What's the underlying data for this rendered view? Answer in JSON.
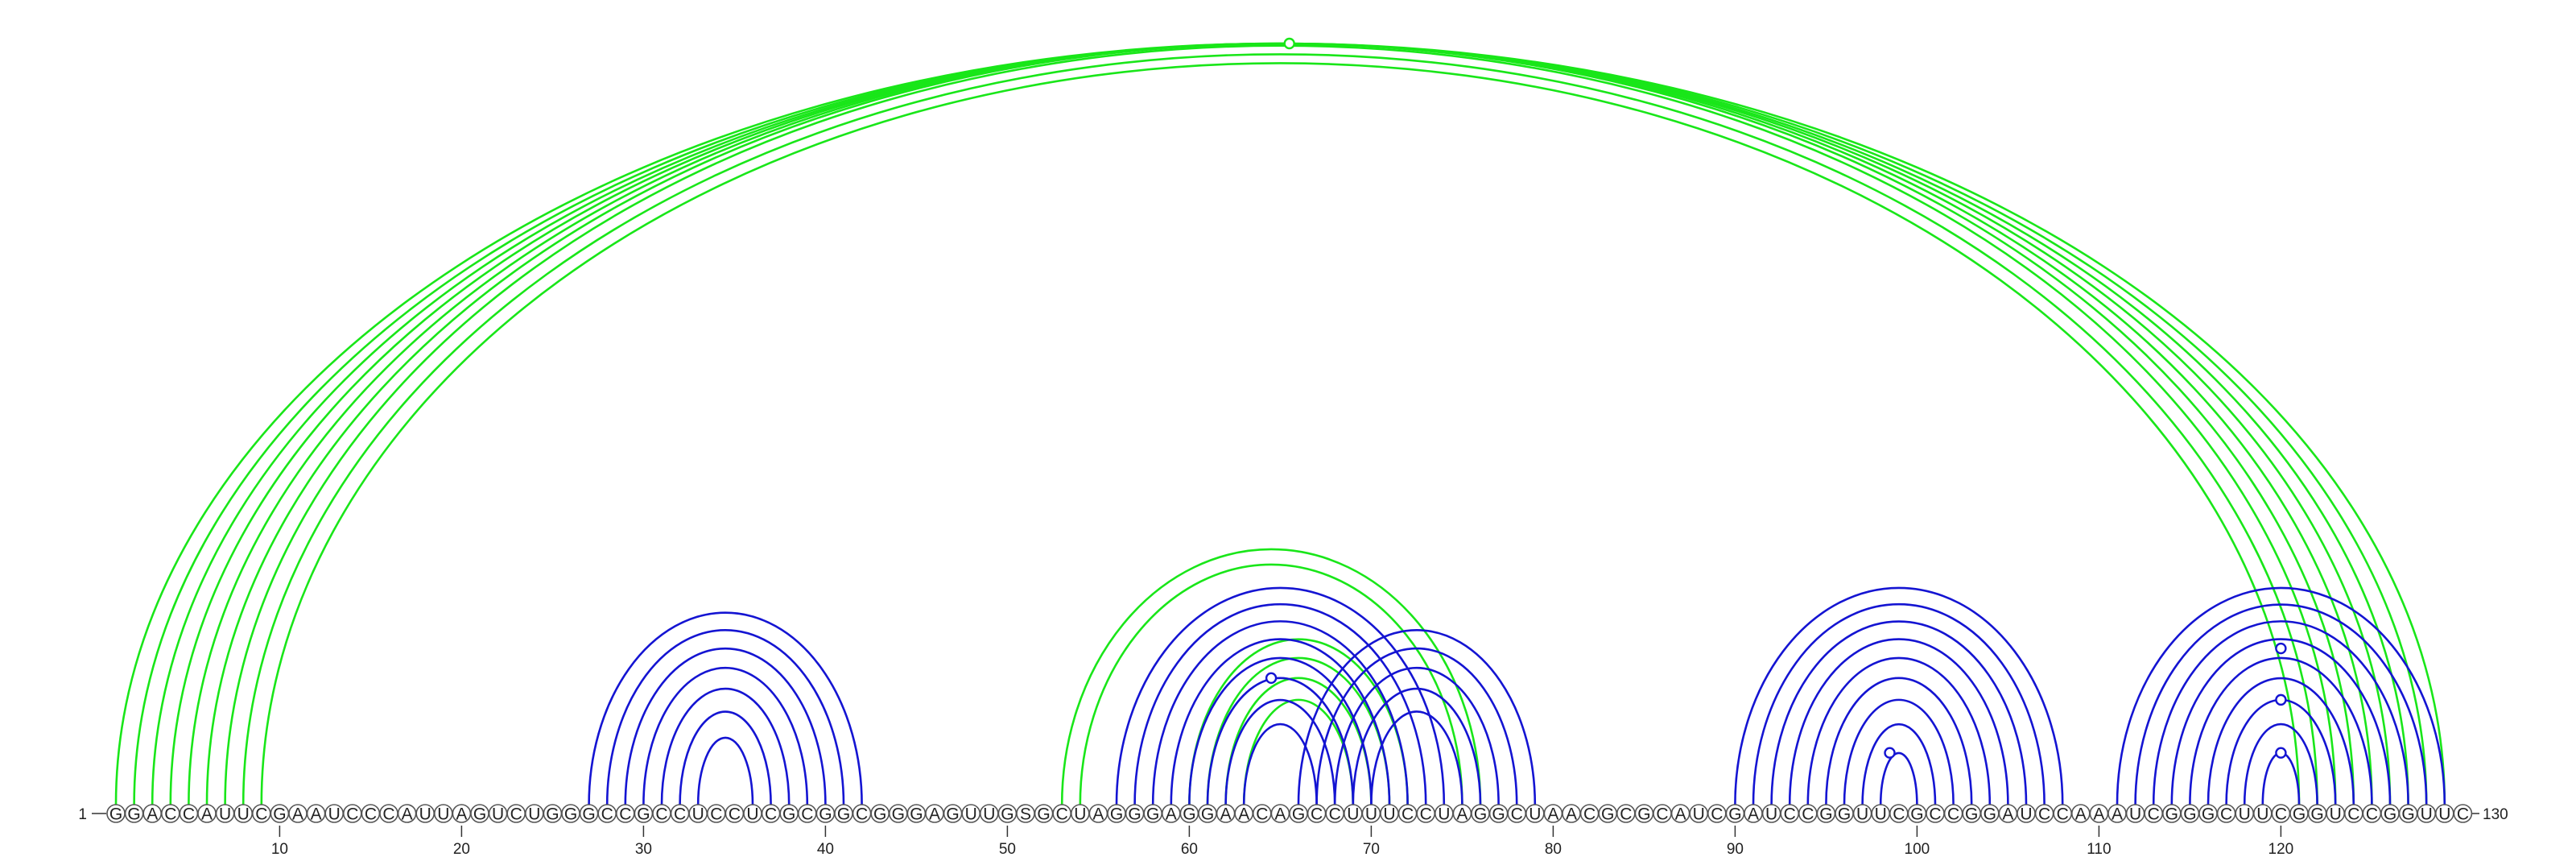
{
  "sequence": "GGACCAUUCGAAUCCCAUUAGUCUGGGCCGCCUCCUCGCGGCGGGAGUUGSGCUAGGGAGGAACAGCCUUUCCUAGGCUAACGCGCAUCGAUCCGGUUCGCCGGAUCCAAAUCGGGCUUCGGUCCGGUUC",
  "start_label": "1",
  "end_label": "130",
  "ticks": [
    "10",
    "20",
    "30",
    "40",
    "50",
    "60",
    "70",
    "80",
    "90",
    "100",
    "110",
    "120"
  ],
  "colors": {
    "green": "#19e619",
    "blue": "#1414d2"
  },
  "arc_groups": [
    {
      "name": "green-long-range",
      "color": "green",
      "pairs": [
        [
          1,
          129
        ],
        [
          2,
          128
        ],
        [
          3,
          127
        ],
        [
          4,
          126
        ],
        [
          5,
          125
        ],
        [
          6,
          124
        ],
        [
          7,
          123
        ],
        [
          8,
          122
        ],
        [
          9,
          121
        ]
      ]
    },
    {
      "name": "blue-hairpin-1",
      "color": "blue",
      "pairs": [
        [
          27,
          42
        ],
        [
          28,
          41
        ],
        [
          29,
          40
        ],
        [
          30,
          39
        ],
        [
          31,
          38
        ],
        [
          32,
          37
        ],
        [
          33,
          36
        ]
      ]
    },
    {
      "name": "green-pseudoknot",
      "color": "green",
      "pairs": [
        [
          53,
          76
        ],
        [
          54,
          75
        ],
        [
          60,
          72
        ],
        [
          61,
          71
        ],
        [
          62,
          70
        ],
        [
          63,
          69
        ]
      ]
    },
    {
      "name": "blue-stem-2",
      "color": "blue",
      "pairs": [
        [
          56,
          74
        ],
        [
          57,
          73
        ],
        [
          58,
          72
        ],
        [
          59,
          71
        ],
        [
          60,
          70
        ],
        [
          61,
          69
        ],
        [
          62,
          68
        ],
        [
          63,
          67
        ]
      ]
    },
    {
      "name": "blue-stem-3",
      "color": "blue",
      "pairs": [
        [
          66,
          79
        ],
        [
          67,
          78
        ],
        [
          68,
          77
        ],
        [
          69,
          76
        ],
        [
          70,
          75
        ]
      ]
    },
    {
      "name": "blue-hairpin-4",
      "color": "blue",
      "pairs": [
        [
          90,
          108
        ],
        [
          91,
          107
        ],
        [
          92,
          106
        ],
        [
          93,
          105
        ],
        [
          94,
          104
        ],
        [
          95,
          103
        ],
        [
          96,
          102
        ],
        [
          97,
          101
        ],
        [
          98,
          100
        ]
      ]
    },
    {
      "name": "blue-hairpin-5",
      "color": "blue",
      "pairs": [
        [
          111,
          129
        ],
        [
          112,
          128
        ],
        [
          113,
          127
        ],
        [
          114,
          126
        ],
        [
          115,
          125
        ],
        [
          116,
          124
        ],
        [
          117,
          123
        ],
        [
          118,
          122
        ],
        [
          119,
          121
        ]
      ]
    }
  ],
  "markers": [
    {
      "position": 65.5,
      "span": 120,
      "color": "green"
    },
    {
      "position": 64.5,
      "span": 8,
      "color": "blue"
    },
    {
      "position": 98.5,
      "span": 2,
      "color": "blue"
    },
    {
      "position": 120,
      "span": 2,
      "color": "blue"
    },
    {
      "position": 120,
      "span": 6,
      "color": "blue"
    },
    {
      "position": 120,
      "span": 11,
      "color": "blue"
    }
  ]
}
